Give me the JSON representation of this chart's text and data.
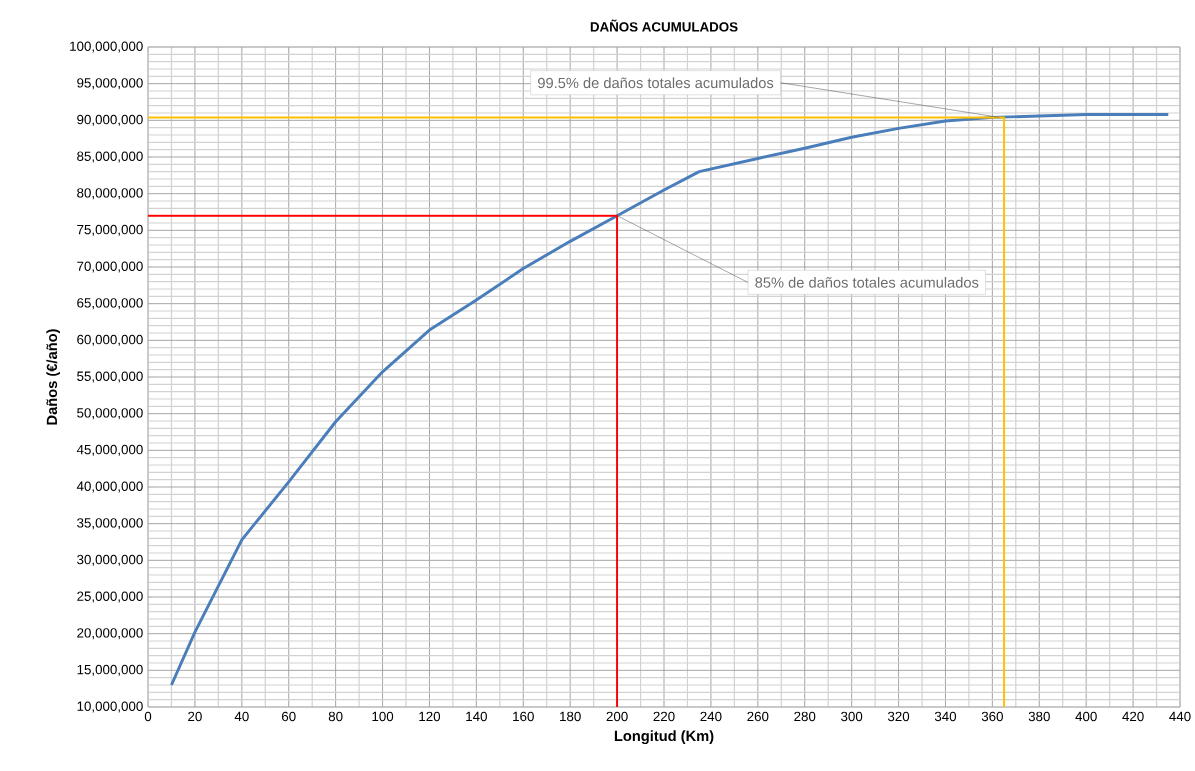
{
  "chart_data": {
    "type": "line",
    "title": "DAÑOS ACUMULADOS",
    "xlabel": "Longitud (Km)",
    "ylabel": "Daños (€/año)",
    "series": [
      {
        "color": "#4a7ebb",
        "x": [
          10,
          20,
          40,
          60,
          80,
          100,
          120,
          140,
          160,
          180,
          200,
          220,
          235,
          260,
          280,
          300,
          320,
          340,
          360,
          380,
          400,
          435
        ],
        "values": [
          13000000,
          20200000,
          32800000,
          40700000,
          48900000,
          55700000,
          61400000,
          65500000,
          69800000,
          73500000,
          77000000,
          80500000,
          83000000,
          84800000,
          86200000,
          87700000,
          88900000,
          89900000,
          90400000,
          90600000,
          90800000,
          90800000
        ]
      },
      {
        "color": "#ff0000",
        "x": [
          0,
          200,
          200
        ],
        "values": [
          77000000,
          77000000,
          10000000
        ]
      },
      {
        "color": "#ffc000",
        "x": [
          0,
          365,
          365
        ],
        "values": [
          90400000,
          90400000,
          10000000
        ]
      }
    ],
    "annotations": [
      {
        "text": "85% de daños totales acumulados",
        "x": 200,
        "y": 77000000
      },
      {
        "text": "99.5% de daños totales acumulados",
        "x": 363,
        "y": 90400000
      }
    ],
    "xlim": [
      0,
      440
    ],
    "ylim": [
      10000000,
      100000000
    ],
    "xticks": [
      0,
      20,
      40,
      60,
      80,
      100,
      120,
      140,
      160,
      180,
      200,
      220,
      240,
      260,
      280,
      300,
      320,
      340,
      360,
      380,
      400,
      420,
      440
    ],
    "yticks": [
      {
        "value": 10000000,
        "label": "10,000,000"
      },
      {
        "value": 15000000,
        "label": "15,000,000"
      },
      {
        "value": 20000000,
        "label": "20,000,000"
      },
      {
        "value": 25000000,
        "label": "25,000,000"
      },
      {
        "value": 30000000,
        "label": "30,000,000"
      },
      {
        "value": 35000000,
        "label": "35,000,000"
      },
      {
        "value": 40000000,
        "label": "40,000,000"
      },
      {
        "value": 45000000,
        "label": "45,000,000"
      },
      {
        "value": 50000000,
        "label": "50,000,000"
      },
      {
        "value": 55000000,
        "label": "55,000,000"
      },
      {
        "value": 60000000,
        "label": "60,000,000"
      },
      {
        "value": 65000000,
        "label": "65,000,000"
      },
      {
        "value": 70000000,
        "label": "70,000,000"
      },
      {
        "value": 75000000,
        "label": "75,000,000"
      },
      {
        "value": 80000000,
        "label": "80,000,000"
      },
      {
        "value": 85000000,
        "label": "85,000,000"
      },
      {
        "value": 90000000,
        "label": "90,000,000"
      },
      {
        "value": 95000000,
        "label": "95,000,000"
      },
      {
        "value": 100000000,
        "label": "100,000,000"
      }
    ],
    "grid": true,
    "marker": "none",
    "line_style": "solid"
  }
}
